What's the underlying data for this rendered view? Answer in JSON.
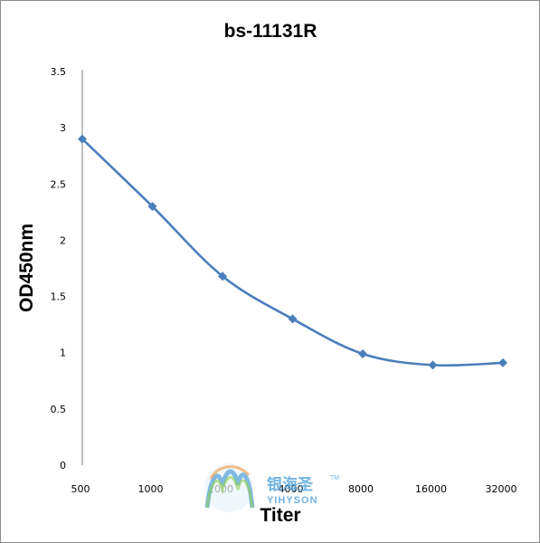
{
  "chart_data": {
    "type": "line",
    "title": "bs-11131R",
    "xlabel": "Titer",
    "ylabel": "OD450nm",
    "categories": [
      "500",
      "1000",
      "2000",
      "4000",
      "8000",
      "16000",
      "32000"
    ],
    "series": [
      {
        "values": [
          2.9,
          2.3,
          1.68,
          1.3,
          0.99,
          0.89,
          0.91
        ]
      }
    ],
    "ylim": [
      0,
      3.5
    ],
    "yticks": [
      "0",
      "0.5",
      "1",
      "1.5",
      "2",
      "2.5",
      "3",
      "3.5"
    ],
    "grid": false,
    "legend": "none",
    "line_color": "#4a7ebb",
    "marker": "diamond"
  },
  "watermark": {
    "cn": "银海圣",
    "en": "YIHYSON",
    "tm": "TM"
  }
}
